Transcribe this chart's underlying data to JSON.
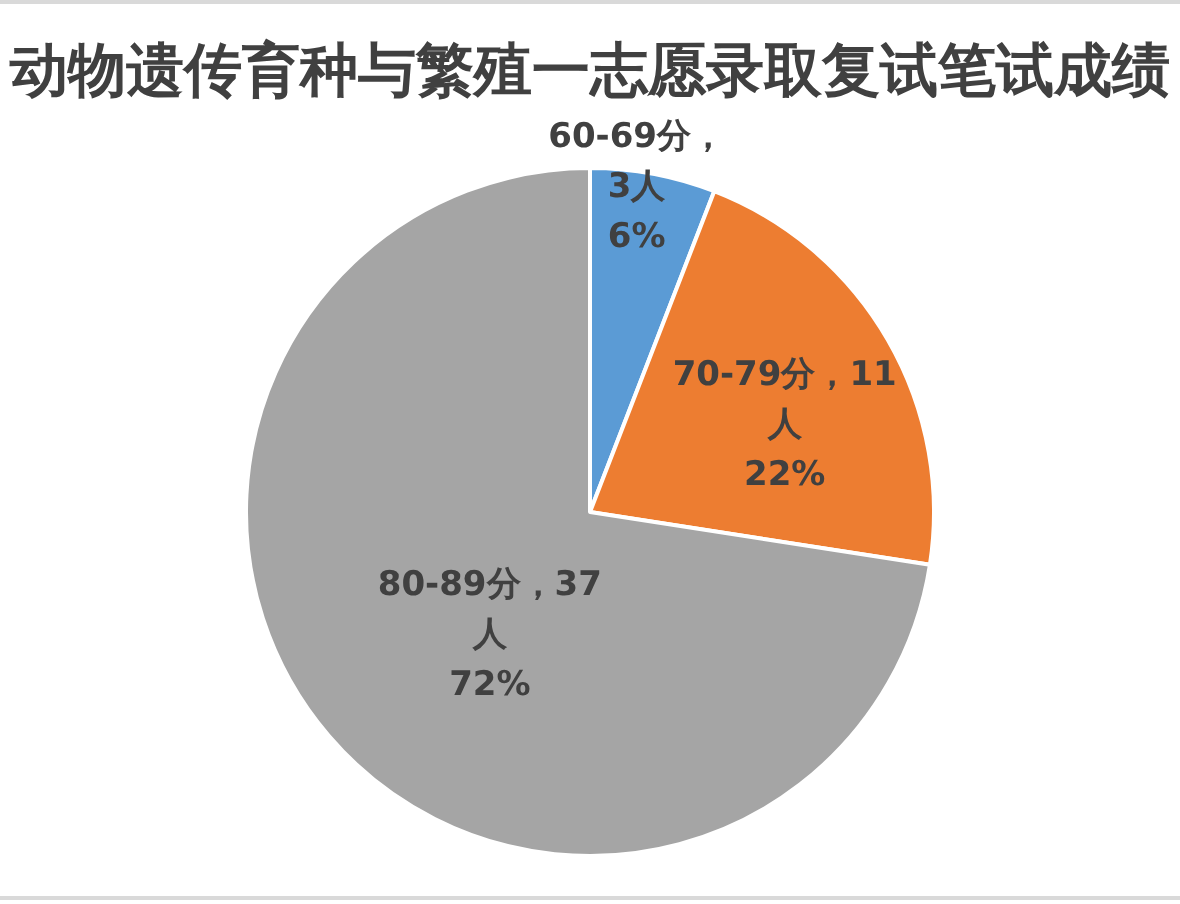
{
  "chart_data": {
    "type": "pie",
    "title": "动物遗传育种与繁殖一志愿录取复试笔试成绩",
    "categories": [
      "60-69分",
      "70-79分",
      "80-89分"
    ],
    "values": [
      3,
      11,
      37
    ],
    "value_labels": [
      "，3人 6%",
      "，11人 22%",
      "，37人 72%"
    ],
    "colors": [
      "#5b9bd5",
      "#ed7d31",
      "#a5a5a5"
    ]
  }
}
